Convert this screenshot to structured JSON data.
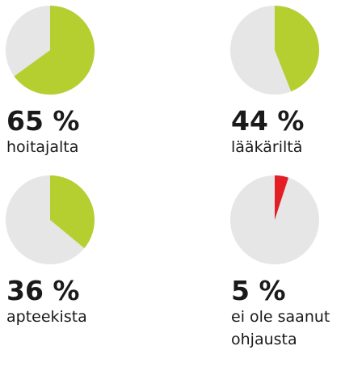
{
  "chart_data": [
    {
      "type": "pie",
      "categories": [
        "hoitajalta"
      ],
      "values": [
        65
      ],
      "value_labels": [
        "65 %"
      ],
      "color": "#b5cf31"
    },
    {
      "type": "pie",
      "categories": [
        "lääkäriltä"
      ],
      "values": [
        44
      ],
      "value_labels": [
        "44 %"
      ],
      "color": "#b5cf31"
    },
    {
      "type": "pie",
      "categories": [
        "apteekista"
      ],
      "values": [
        36
      ],
      "value_labels": [
        "36 %"
      ],
      "color": "#b5cf31"
    },
    {
      "type": "pie",
      "categories": [
        "ei ole saanut ohjausta"
      ],
      "values": [
        5
      ],
      "value_labels": [
        "5 %"
      ],
      "color": "#e31e24"
    }
  ]
}
